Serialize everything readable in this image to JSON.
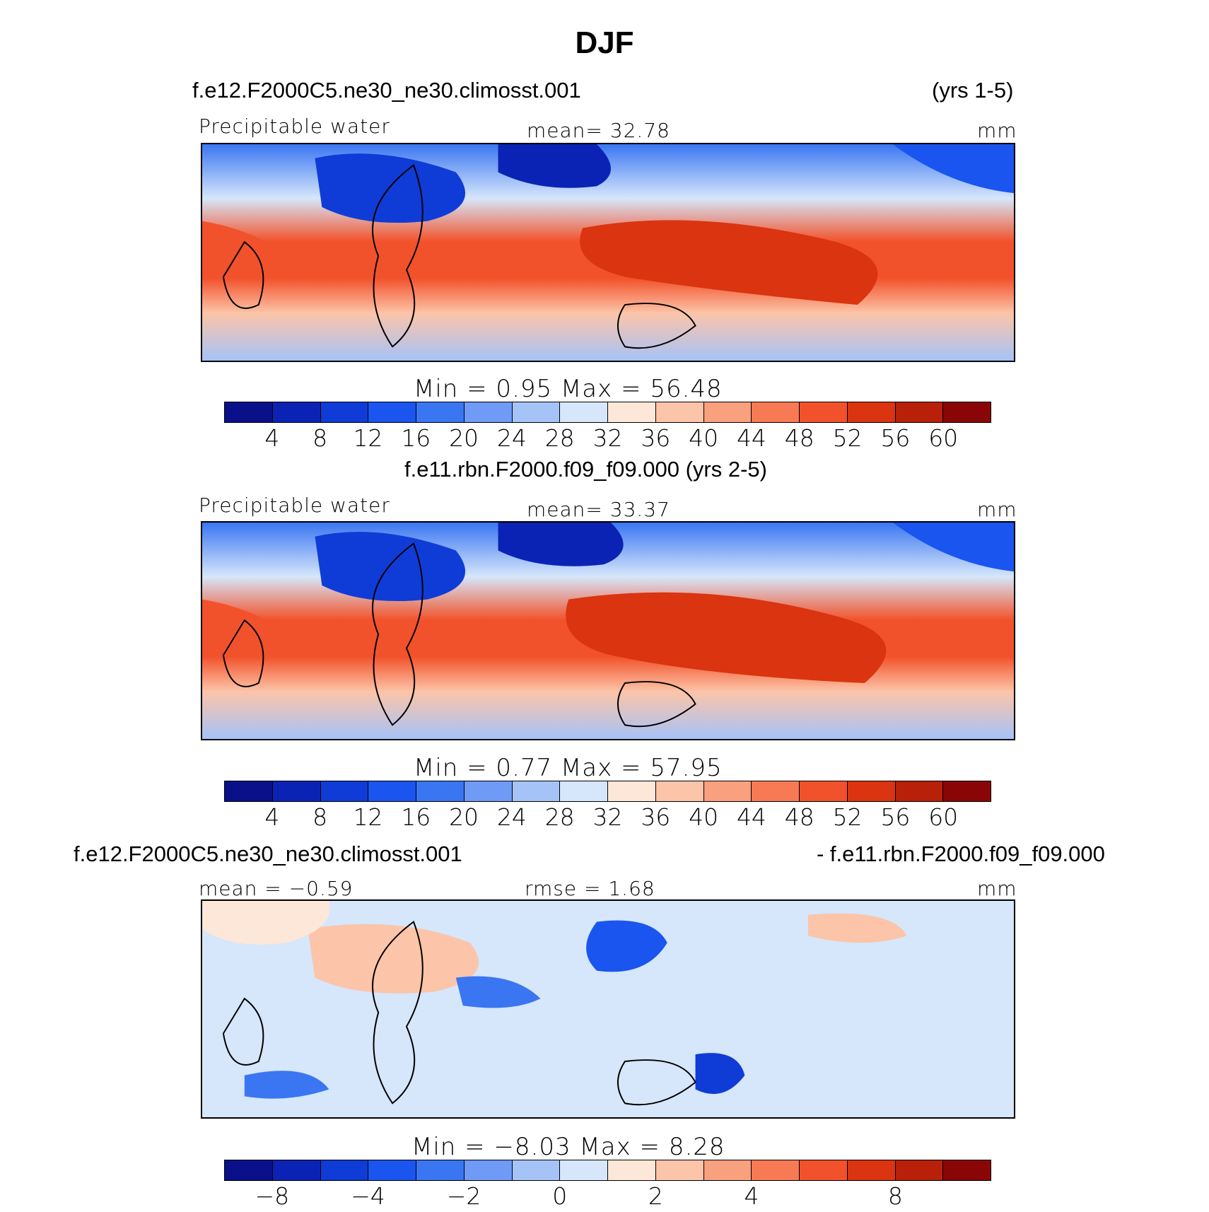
{
  "page": {
    "title": "DJF"
  },
  "panel1": {
    "case": "f.e12.F2000C5.ne30_ne30.climosst.001",
    "years": "(yrs 1-5)",
    "left": "Precipitable  water",
    "center": "mean=   32.78",
    "units": "mm",
    "minmax": "Min  =     0.95  Max  =    56.48"
  },
  "panel2": {
    "case": "f.e11.rbn.F2000.f09_f09.000 (yrs 2-5)",
    "left": "Precipitable  water",
    "center": "mean=   33.37",
    "units": "mm",
    "minmax": "Min  =     0.77  Max  =    57.95"
  },
  "panel3": {
    "case_a": "f.e12.F2000C5.ne30_ne30.climosst.001",
    "case_b": "- f.e11.rbn.F2000.f09_f09.000",
    "left": "mean  =   −0.59",
    "center": "rmse  =     1.68",
    "units": "mm",
    "minmax": "Min  =   −8.03  Max  =     8.28"
  },
  "colorbar_abs": {
    "colors": [
      "#0a0f8a",
      "#0b23b4",
      "#0f3cd6",
      "#1b55f0",
      "#3a76f2",
      "#6f9af5",
      "#a6c3f8",
      "#d6e6fb",
      "#fde7d8",
      "#fcc4a8",
      "#f9a07f",
      "#f77a55",
      "#f2522b",
      "#db3410",
      "#b8200a",
      "#8a0606"
    ],
    "ticks": [
      "4",
      "8",
      "12",
      "16",
      "20",
      "24",
      "28",
      "32",
      "36",
      "40",
      "44",
      "48",
      "52",
      "56",
      "60"
    ]
  },
  "colorbar_diff": {
    "colors": [
      "#0a0f8a",
      "#0b23b4",
      "#0f3cd6",
      "#1b55f0",
      "#3a76f2",
      "#6f9af5",
      "#a6c3f8",
      "#d6e6fb",
      "#fde7d8",
      "#fcc4a8",
      "#f9a07f",
      "#f77a55",
      "#f2522b",
      "#db3410",
      "#b8200a",
      "#8a0606"
    ],
    "ticks": [
      "−8",
      "−4",
      "−2",
      "0",
      "2",
      "4",
      "8"
    ],
    "tick_boundaries": [
      1,
      3,
      5,
      7,
      9,
      11,
      13
    ]
  }
}
